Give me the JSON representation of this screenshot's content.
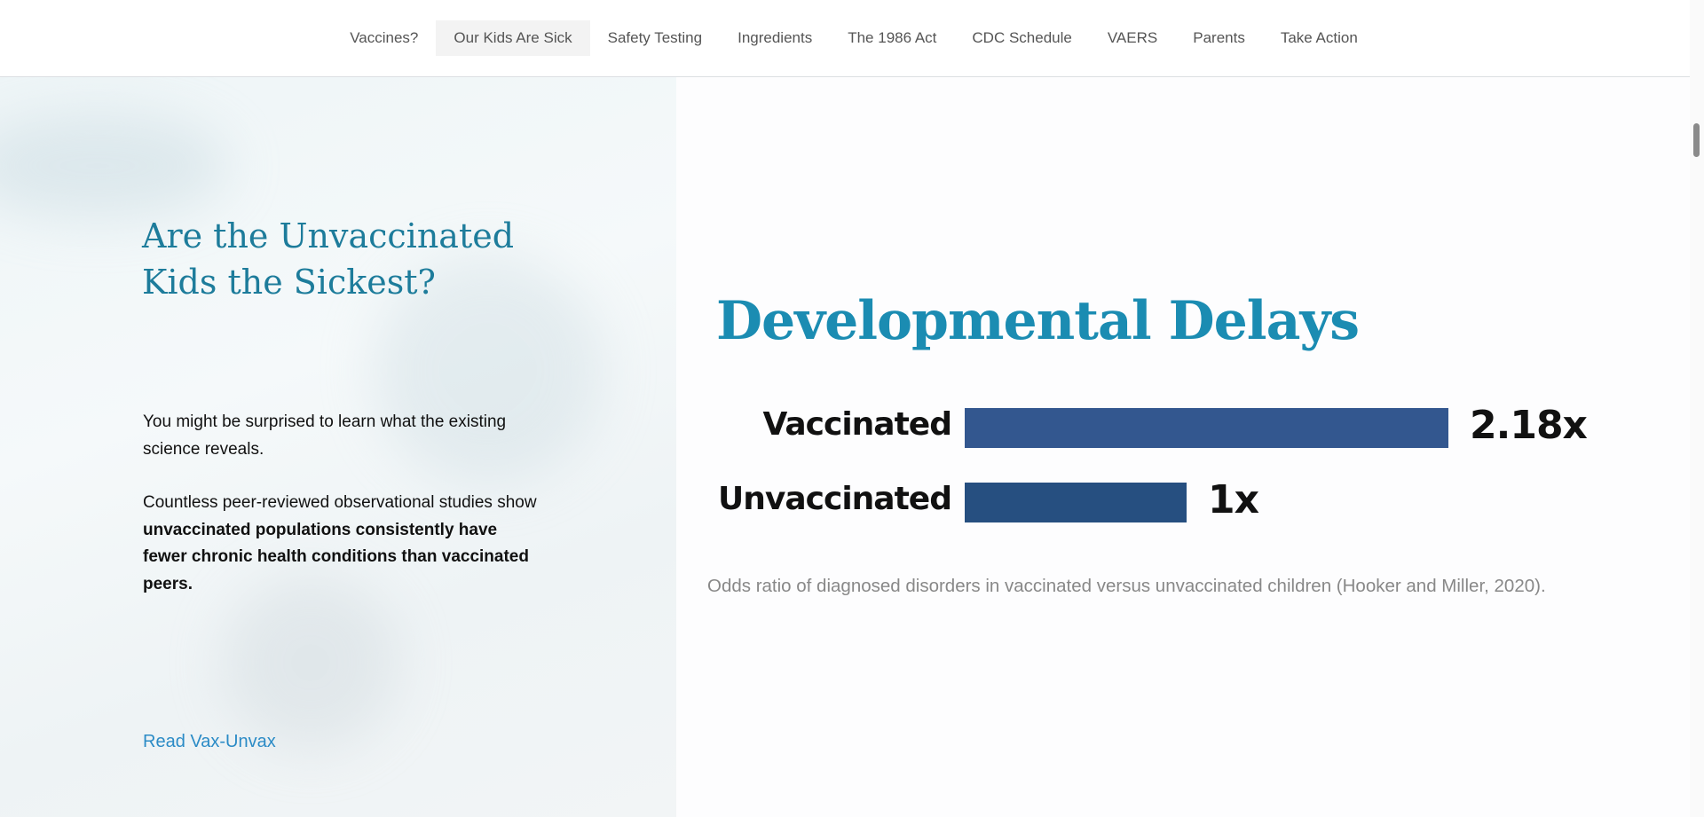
{
  "nav": {
    "items": [
      {
        "label": "Vaccines?",
        "active": false
      },
      {
        "label": "Our Kids Are Sick",
        "active": true
      },
      {
        "label": "Safety Testing",
        "active": false
      },
      {
        "label": "Ingredients",
        "active": false
      },
      {
        "label": "The 1986 Act",
        "active": false
      },
      {
        "label": "CDC Schedule",
        "active": false
      },
      {
        "label": "VAERS",
        "active": false
      },
      {
        "label": "Parents",
        "active": false
      },
      {
        "label": "Take Action",
        "active": false
      }
    ]
  },
  "left": {
    "heading": "Are the Unvaccinated Kids the Sickest?",
    "para1": "You might be surprised to learn what the existing science reveals.",
    "para2_lead": "Countless peer-reviewed observational studies show ",
    "para2_bold": "unvaccinated populations consistently have fewer chronic health conditions than vaccinated peers.",
    "link": "Read Vax-Unvax"
  },
  "chart_data": {
    "type": "bar",
    "orientation": "horizontal",
    "title": "Developmental Delays",
    "categories": [
      "Vaccinated",
      "Unvaccinated"
    ],
    "values": [
      2.18,
      1
    ],
    "value_labels": [
      "2.18x",
      "1x"
    ],
    "colors": [
      "#33578f",
      "#264f80"
    ],
    "caption": "Odds ratio of diagnosed disorders in vaccinated versus unvaccinated children (Hooker and Miller, 2020).",
    "grid": false
  },
  "colors": {
    "accent": "#1d7c9b",
    "link": "#2b8bc6"
  }
}
